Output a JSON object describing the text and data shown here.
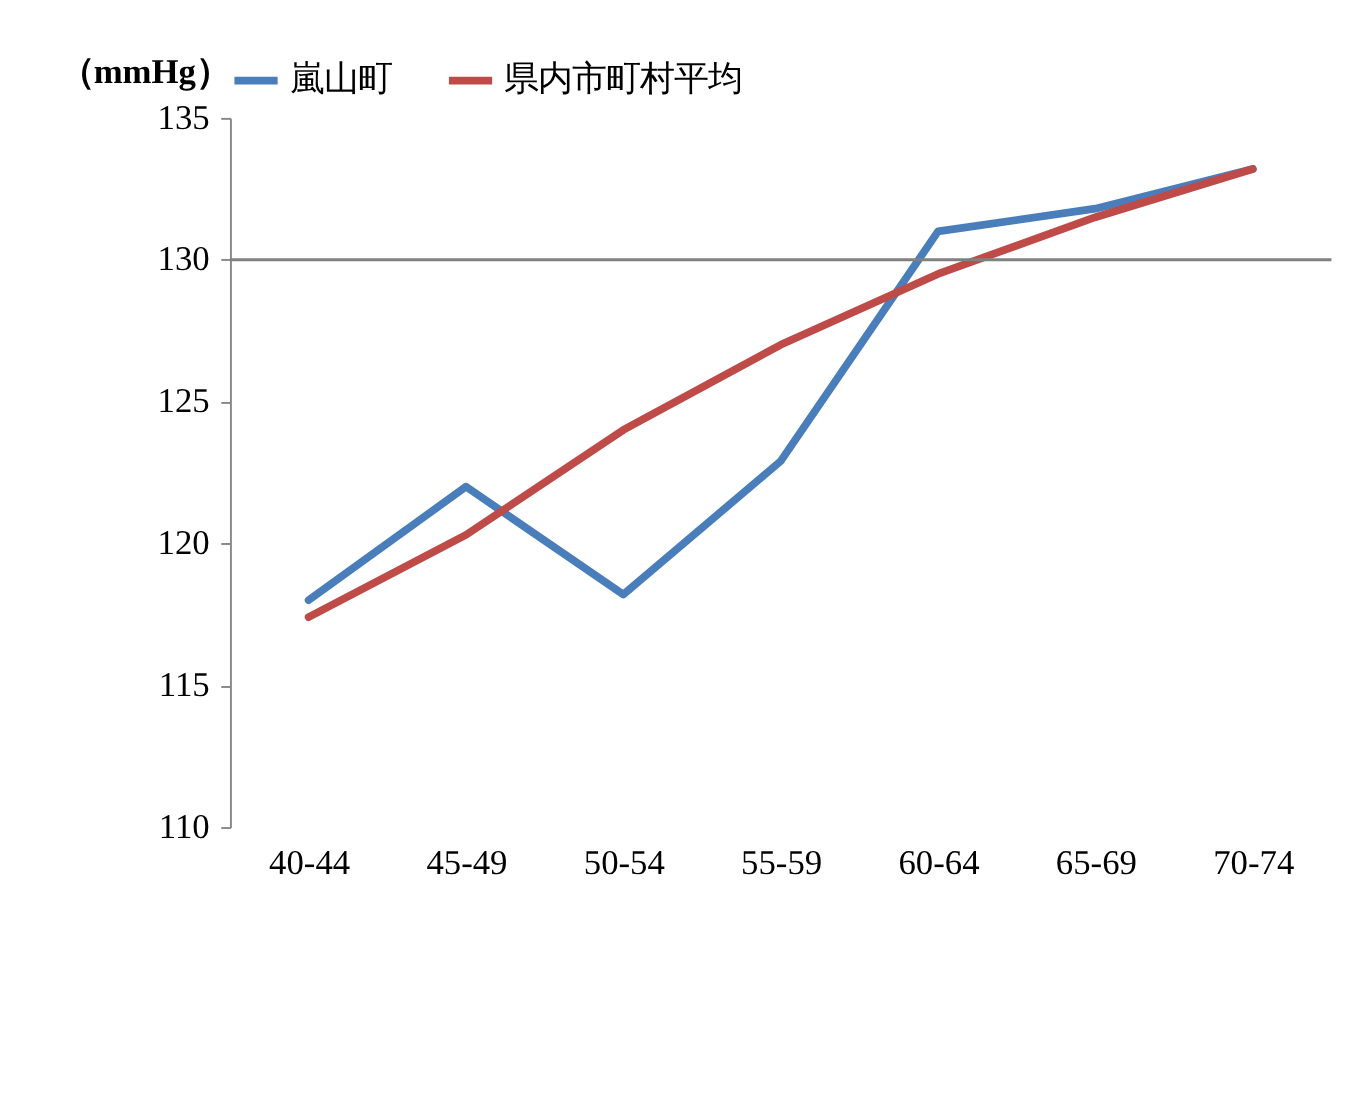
{
  "chart_data": {
    "type": "line",
    "ylabel": "（mmHg）",
    "categories": [
      "40-44",
      "45-49",
      "50-54",
      "55-59",
      "60-64",
      "65-69",
      "70-74"
    ],
    "series": [
      {
        "name": "嵐山町",
        "color": "#4a7ebb",
        "values": [
          118.0,
          122.0,
          118.2,
          122.9,
          131.0,
          131.8,
          133.2
        ]
      },
      {
        "name": "県内市町村平均",
        "color": "#be4b48",
        "values": [
          117.4,
          120.3,
          124.0,
          127.0,
          129.5,
          131.5,
          133.2
        ]
      }
    ],
    "ylim": [
      110,
      135
    ],
    "yticks": [
      110,
      115,
      120,
      125,
      130,
      135
    ],
    "ref_lines": [
      {
        "axis": "y",
        "value": 130,
        "color": "#808080"
      }
    ],
    "grid": false,
    "legend": "top",
    "marker": "none",
    "line_style": "solid"
  }
}
